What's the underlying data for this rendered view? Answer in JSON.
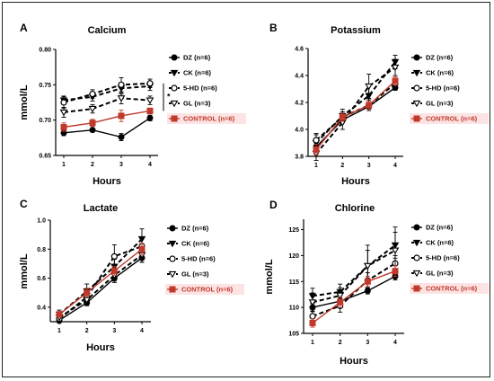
{
  "chart_data": [
    {
      "type": "line",
      "letter": "A",
      "title": "Calcium",
      "xlabel": "Hours",
      "ylabel": "mmol/L",
      "x": [
        1,
        2,
        3,
        4
      ],
      "ylim": [
        0.65,
        0.8
      ],
      "yticks": [
        "0.65",
        "0.70",
        "0.75",
        "0.80"
      ],
      "ytickvals": [
        0.65,
        0.7,
        0.75,
        0.8
      ],
      "annotation": "*",
      "series": [
        {
          "name": "DZ (n=6)",
          "values": [
            0.682,
            0.686,
            0.676,
            0.703
          ],
          "errors": [
            0.004,
            0.003,
            0.005,
            0.004
          ],
          "color": "#000000",
          "dash": "solid",
          "marker": "circle-filled"
        },
        {
          "name": "CK (n=6)",
          "values": [
            0.728,
            0.733,
            0.745,
            0.748
          ],
          "errors": [
            0.006,
            0.006,
            0.008,
            0.006
          ],
          "color": "#000000",
          "dash": "dashed",
          "marker": "tri-filled"
        },
        {
          "name": "5-HD (n=6)",
          "values": [
            0.725,
            0.737,
            0.75,
            0.752
          ],
          "errors": [
            0.008,
            0.006,
            0.01,
            0.006
          ],
          "color": "#000000",
          "dash": "dashed",
          "marker": "circle-open"
        },
        {
          "name": "GL (n=3)",
          "values": [
            0.711,
            0.716,
            0.731,
            0.728
          ],
          "errors": [
            0.007,
            0.006,
            0.008,
            0.006
          ],
          "color": "#000000",
          "dash": "dashed",
          "marker": "tri-open"
        },
        {
          "name": "CONTROL (n=6)",
          "values": [
            0.69,
            0.696,
            0.706,
            0.713
          ],
          "errors": [
            0.006,
            0.005,
            0.008,
            0.004
          ],
          "color": "#c0392b",
          "dash": "solid",
          "marker": "square-filled"
        }
      ]
    },
    {
      "type": "line",
      "letter": "B",
      "title": "Potassium",
      "xlabel": "Hours",
      "ylabel": "",
      "x": [
        1,
        2,
        3,
        4
      ],
      "ylim": [
        3.8,
        4.6
      ],
      "yticks": [
        "3.8",
        "4.0",
        "4.2",
        "4.4",
        "4.6"
      ],
      "ytickvals": [
        3.8,
        4.0,
        4.2,
        4.4,
        4.6
      ],
      "series": [
        {
          "name": "DZ (n=6)",
          "values": [
            3.87,
            4.07,
            4.17,
            4.31
          ],
          "errors": [
            0.03,
            0.02,
            0.02,
            0.02
          ],
          "color": "#000000",
          "dash": "solid",
          "marker": "circle-filled"
        },
        {
          "name": "CK (n=6)",
          "values": [
            3.9,
            4.1,
            4.25,
            4.5
          ],
          "errors": [
            0.06,
            0.05,
            0.08,
            0.05
          ],
          "color": "#000000",
          "dash": "dashed",
          "marker": "tri-filled"
        },
        {
          "name": "5-HD (n=6)",
          "values": [
            3.92,
            4.09,
            4.18,
            4.34
          ],
          "errors": [
            0.05,
            0.04,
            0.04,
            0.04
          ],
          "color": "#000000",
          "dash": "dashed",
          "marker": "circle-open"
        },
        {
          "name": "GL (n=3)",
          "values": [
            3.82,
            4.05,
            4.32,
            4.46
          ],
          "errors": [
            0.05,
            0.05,
            0.09,
            0.06
          ],
          "color": "#000000",
          "dash": "dashed",
          "marker": "tri-open"
        },
        {
          "name": "CONTROL (n=6)",
          "values": [
            3.85,
            4.09,
            4.18,
            4.36
          ],
          "errors": [
            0.04,
            0.03,
            0.03,
            0.03
          ],
          "color": "#c0392b",
          "dash": "solid",
          "marker": "square-filled"
        }
      ]
    },
    {
      "type": "line",
      "letter": "C",
      "title": "Lactate",
      "xlabel": "Hours",
      "ylabel": "mmol/L",
      "x": [
        1,
        2,
        3,
        4
      ],
      "ylim": [
        0.3,
        1.0
      ],
      "yticks": [
        "0.4",
        "0.6",
        "0.8",
        "1.0"
      ],
      "ytickvals": [
        0.4,
        0.6,
        0.8,
        1.0
      ],
      "series": [
        {
          "name": "DZ (n=6)",
          "values": [
            0.31,
            0.43,
            0.6,
            0.74
          ],
          "errors": [
            0.02,
            0.02,
            0.03,
            0.03
          ],
          "color": "#000000",
          "dash": "solid",
          "marker": "circle-filled"
        },
        {
          "name": "CK (n=6)",
          "values": [
            0.35,
            0.51,
            0.68,
            0.87
          ],
          "errors": [
            0.03,
            0.05,
            0.05,
            0.07
          ],
          "color": "#000000",
          "dash": "dashed",
          "marker": "tri-filled"
        },
        {
          "name": "5-HD (n=6)",
          "values": [
            0.32,
            0.47,
            0.75,
            0.82
          ],
          "errors": [
            0.03,
            0.04,
            0.08,
            0.05
          ],
          "color": "#000000",
          "dash": "dashed",
          "marker": "circle-open"
        },
        {
          "name": "GL (n=3)",
          "values": [
            0.33,
            0.45,
            0.62,
            0.76
          ],
          "errors": [
            0.03,
            0.03,
            0.04,
            0.05
          ],
          "color": "#000000",
          "dash": "dashed",
          "marker": "tri-open"
        },
        {
          "name": "CONTROL (n=6)",
          "values": [
            0.35,
            0.5,
            0.65,
            0.8
          ],
          "errors": [
            0.02,
            0.03,
            0.03,
            0.04
          ],
          "color": "#c0392b",
          "dash": "solid",
          "marker": "square-filled"
        }
      ]
    },
    {
      "type": "line",
      "letter": "D",
      "title": "Chlorine",
      "xlabel": "Hours",
      "ylabel": "mmol/L",
      "x": [
        1,
        2,
        3,
        4
      ],
      "ylim": [
        105,
        127
      ],
      "yticks": [
        "105",
        "110",
        "115",
        "120",
        "125"
      ],
      "ytickvals": [
        105,
        110,
        115,
        120,
        125
      ],
      "series": [
        {
          "name": "DZ (n=6)",
          "values": [
            110.0,
            111.2,
            113.2,
            116.0
          ],
          "errors": [
            0.8,
            0.6,
            0.6,
            0.7
          ],
          "color": "#000000",
          "dash": "solid",
          "marker": "circle-filled"
        },
        {
          "name": "CK (n=6)",
          "values": [
            112.2,
            113.0,
            118.0,
            122.0
          ],
          "errors": [
            1.5,
            1.5,
            3.0,
            2.5
          ],
          "color": "#000000",
          "dash": "dashed",
          "marker": "tri-filled"
        },
        {
          "name": "5-HD (n=6)",
          "values": [
            108.3,
            110.3,
            115.2,
            118.5
          ],
          "errors": [
            1.0,
            1.2,
            1.5,
            1.5
          ],
          "color": "#000000",
          "dash": "dashed",
          "marker": "circle-open"
        },
        {
          "name": "GL (n=3)",
          "values": [
            111.0,
            112.3,
            118.0,
            121.0
          ],
          "errors": [
            1.8,
            1.5,
            4.0,
            4.5
          ],
          "color": "#000000",
          "dash": "dashed",
          "marker": "tri-open"
        },
        {
          "name": "CONTROL (n=6)",
          "values": [
            107.0,
            111.0,
            115.0,
            117.0
          ],
          "errors": [
            0.8,
            1.0,
            1.0,
            1.0
          ],
          "color": "#c0392b",
          "dash": "solid",
          "marker": "square-filled"
        }
      ]
    }
  ]
}
